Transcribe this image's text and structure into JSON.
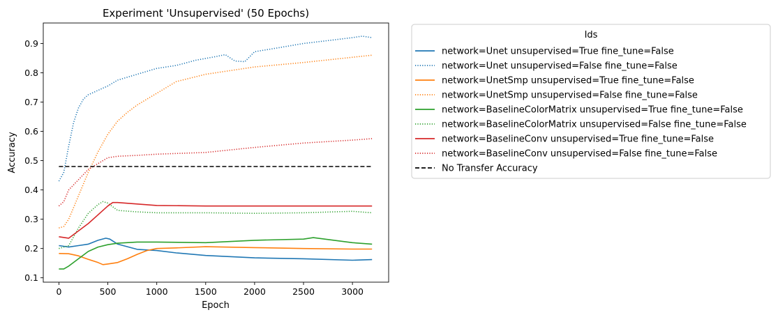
{
  "chart_data": {
    "type": "line",
    "title": "Experiment 'Unsupervised' (50 Epochs)",
    "xlabel": "Epoch",
    "ylabel": "Accuracy",
    "xlim": [
      -160,
      3370
    ],
    "ylim": [
      0.085,
      0.97
    ],
    "xticks": [
      0,
      500,
      1000,
      1500,
      2000,
      2500,
      3000
    ],
    "yticks": [
      0.1,
      0.2,
      0.3,
      0.4,
      0.5,
      0.6,
      0.7,
      0.8,
      0.9
    ],
    "grid": false,
    "legend": {
      "title": "Ids",
      "placement": "outside-right"
    },
    "series": [
      {
        "name": "network=Unet unsupervised=True fine_tune=False",
        "color": "#1f77b4",
        "style": "solid",
        "x": [
          0,
          100,
          200,
          300,
          400,
          480,
          520,
          600,
          800,
          1000,
          1200,
          1500,
          2000,
          2500,
          3000,
          3200
        ],
        "y": [
          0.21,
          0.205,
          0.21,
          0.215,
          0.228,
          0.235,
          0.232,
          0.215,
          0.197,
          0.193,
          0.185,
          0.176,
          0.168,
          0.165,
          0.16,
          0.162
        ]
      },
      {
        "name": "network=Unet unsupervised=False fine_tune=False",
        "color": "#1f77b4",
        "style": "dotted",
        "x": [
          0,
          50,
          100,
          150,
          200,
          250,
          300,
          400,
          500,
          600,
          800,
          1000,
          1200,
          1400,
          1600,
          1700,
          1800,
          1900,
          2000,
          2200,
          2500,
          2800,
          3000,
          3100,
          3200
        ],
        "y": [
          0.43,
          0.46,
          0.55,
          0.63,
          0.68,
          0.71,
          0.725,
          0.74,
          0.755,
          0.775,
          0.795,
          0.815,
          0.825,
          0.843,
          0.855,
          0.862,
          0.84,
          0.838,
          0.872,
          0.883,
          0.9,
          0.912,
          0.92,
          0.925,
          0.92
        ]
      },
      {
        "name": "network=UnetSmp unsupervised=True fine_tune=False",
        "color": "#ff7f0e",
        "style": "solid",
        "x": [
          0,
          100,
          200,
          300,
          400,
          450,
          500,
          600,
          700,
          800,
          900,
          1000,
          1200,
          1500,
          2000,
          2500,
          3000,
          3200
        ],
        "y": [
          0.183,
          0.182,
          0.175,
          0.163,
          0.152,
          0.145,
          0.147,
          0.152,
          0.165,
          0.18,
          0.193,
          0.2,
          0.202,
          0.206,
          0.203,
          0.2,
          0.198,
          0.198
        ]
      },
      {
        "name": "network=UnetSmp unsupervised=False fine_tune=False",
        "color": "#ff7f0e",
        "style": "dotted",
        "x": [
          0,
          50,
          100,
          200,
          300,
          400,
          500,
          600,
          700,
          800,
          1000,
          1200,
          1500,
          1800,
          2000,
          2500,
          3000,
          3200
        ],
        "y": [
          0.27,
          0.275,
          0.3,
          0.38,
          0.46,
          0.53,
          0.59,
          0.635,
          0.665,
          0.69,
          0.73,
          0.77,
          0.795,
          0.81,
          0.82,
          0.835,
          0.853,
          0.86
        ]
      },
      {
        "name": "network=BaselineColorMatrix unsupervised=True fine_tune=False",
        "color": "#2ca02c",
        "style": "solid",
        "x": [
          0,
          50,
          100,
          200,
          300,
          400,
          500,
          600,
          800,
          1000,
          1500,
          2000,
          2500,
          2600,
          3000,
          3200
        ],
        "y": [
          0.13,
          0.13,
          0.14,
          0.165,
          0.19,
          0.205,
          0.213,
          0.218,
          0.222,
          0.222,
          0.22,
          0.228,
          0.232,
          0.237,
          0.22,
          0.215
        ]
      },
      {
        "name": "network=BaselineColorMatrix unsupervised=False fine_tune=False",
        "color": "#2ca02c",
        "style": "dotted",
        "x": [
          0,
          100,
          200,
          300,
          400,
          450,
          500,
          600,
          800,
          1000,
          1500,
          2000,
          2500,
          3000,
          3200
        ],
        "y": [
          0.2,
          0.21,
          0.27,
          0.32,
          0.35,
          0.36,
          0.355,
          0.33,
          0.325,
          0.322,
          0.322,
          0.32,
          0.322,
          0.327,
          0.322
        ]
      },
      {
        "name": "network=BaselineConv unsupervised=True fine_tune=False",
        "color": "#d62728",
        "style": "solid",
        "x": [
          0,
          100,
          200,
          300,
          400,
          500,
          550,
          600,
          800,
          1000,
          1500,
          2000,
          2500,
          3000,
          3200
        ],
        "y": [
          0.24,
          0.235,
          0.26,
          0.285,
          0.315,
          0.345,
          0.357,
          0.357,
          0.352,
          0.347,
          0.345,
          0.345,
          0.345,
          0.345,
          0.345
        ]
      },
      {
        "name": "network=BaselineConv unsupervised=False fine_tune=False",
        "color": "#d62728",
        "style": "dotted",
        "x": [
          0,
          50,
          100,
          200,
          300,
          400,
          500,
          600,
          800,
          1000,
          1500,
          2000,
          2500,
          3000,
          3200
        ],
        "y": [
          0.345,
          0.36,
          0.4,
          0.435,
          0.47,
          0.49,
          0.51,
          0.515,
          0.518,
          0.522,
          0.528,
          0.545,
          0.56,
          0.57,
          0.575
        ]
      },
      {
        "name": "No Transfer Accuracy",
        "color": "#000000",
        "style": "dashed",
        "x": [
          0,
          3200
        ],
        "y": [
          0.48,
          0.48
        ]
      }
    ]
  }
}
